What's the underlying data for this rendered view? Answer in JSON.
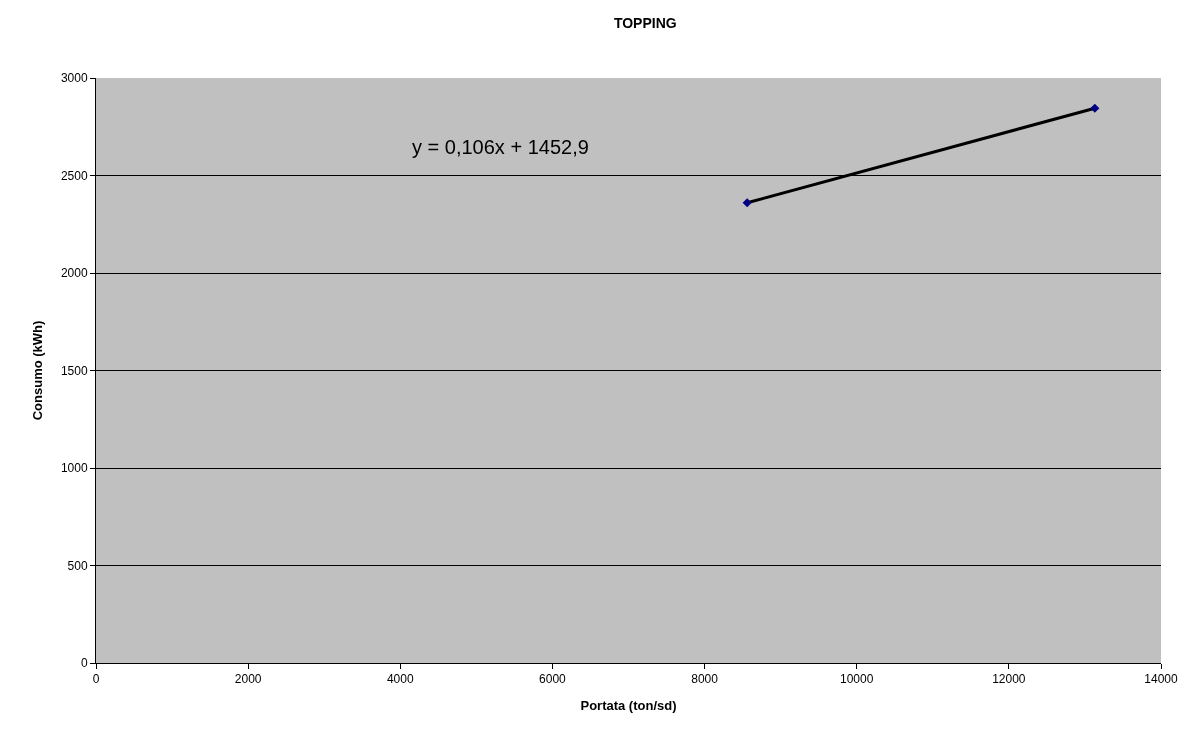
{
  "chart_data": {
    "type": "scatter",
    "title": "TOPPING",
    "xlabel": "Portata (ton/sd)",
    "ylabel": "Consumo (kWh)",
    "annotations": [
      "y = 0,106x + 1452,9"
    ],
    "x": [
      8560,
      13130
    ],
    "series": [
      {
        "type": "line",
        "color": "#000000",
        "marker": "none",
        "line_style": "solid",
        "values": [
          2360,
          2845
        ]
      },
      {
        "color": "#000080",
        "marker": "diamond",
        "values": [
          2360,
          2845
        ]
      }
    ],
    "xlim": [
      0,
      14000
    ],
    "xticks": [
      0,
      2000,
      4000,
      6000,
      8000,
      10000,
      12000,
      14000
    ],
    "ylim": [
      0,
      3000
    ],
    "yticks": [
      0,
      500,
      1000,
      1500,
      2000,
      2500,
      3000
    ],
    "grid": "y"
  }
}
